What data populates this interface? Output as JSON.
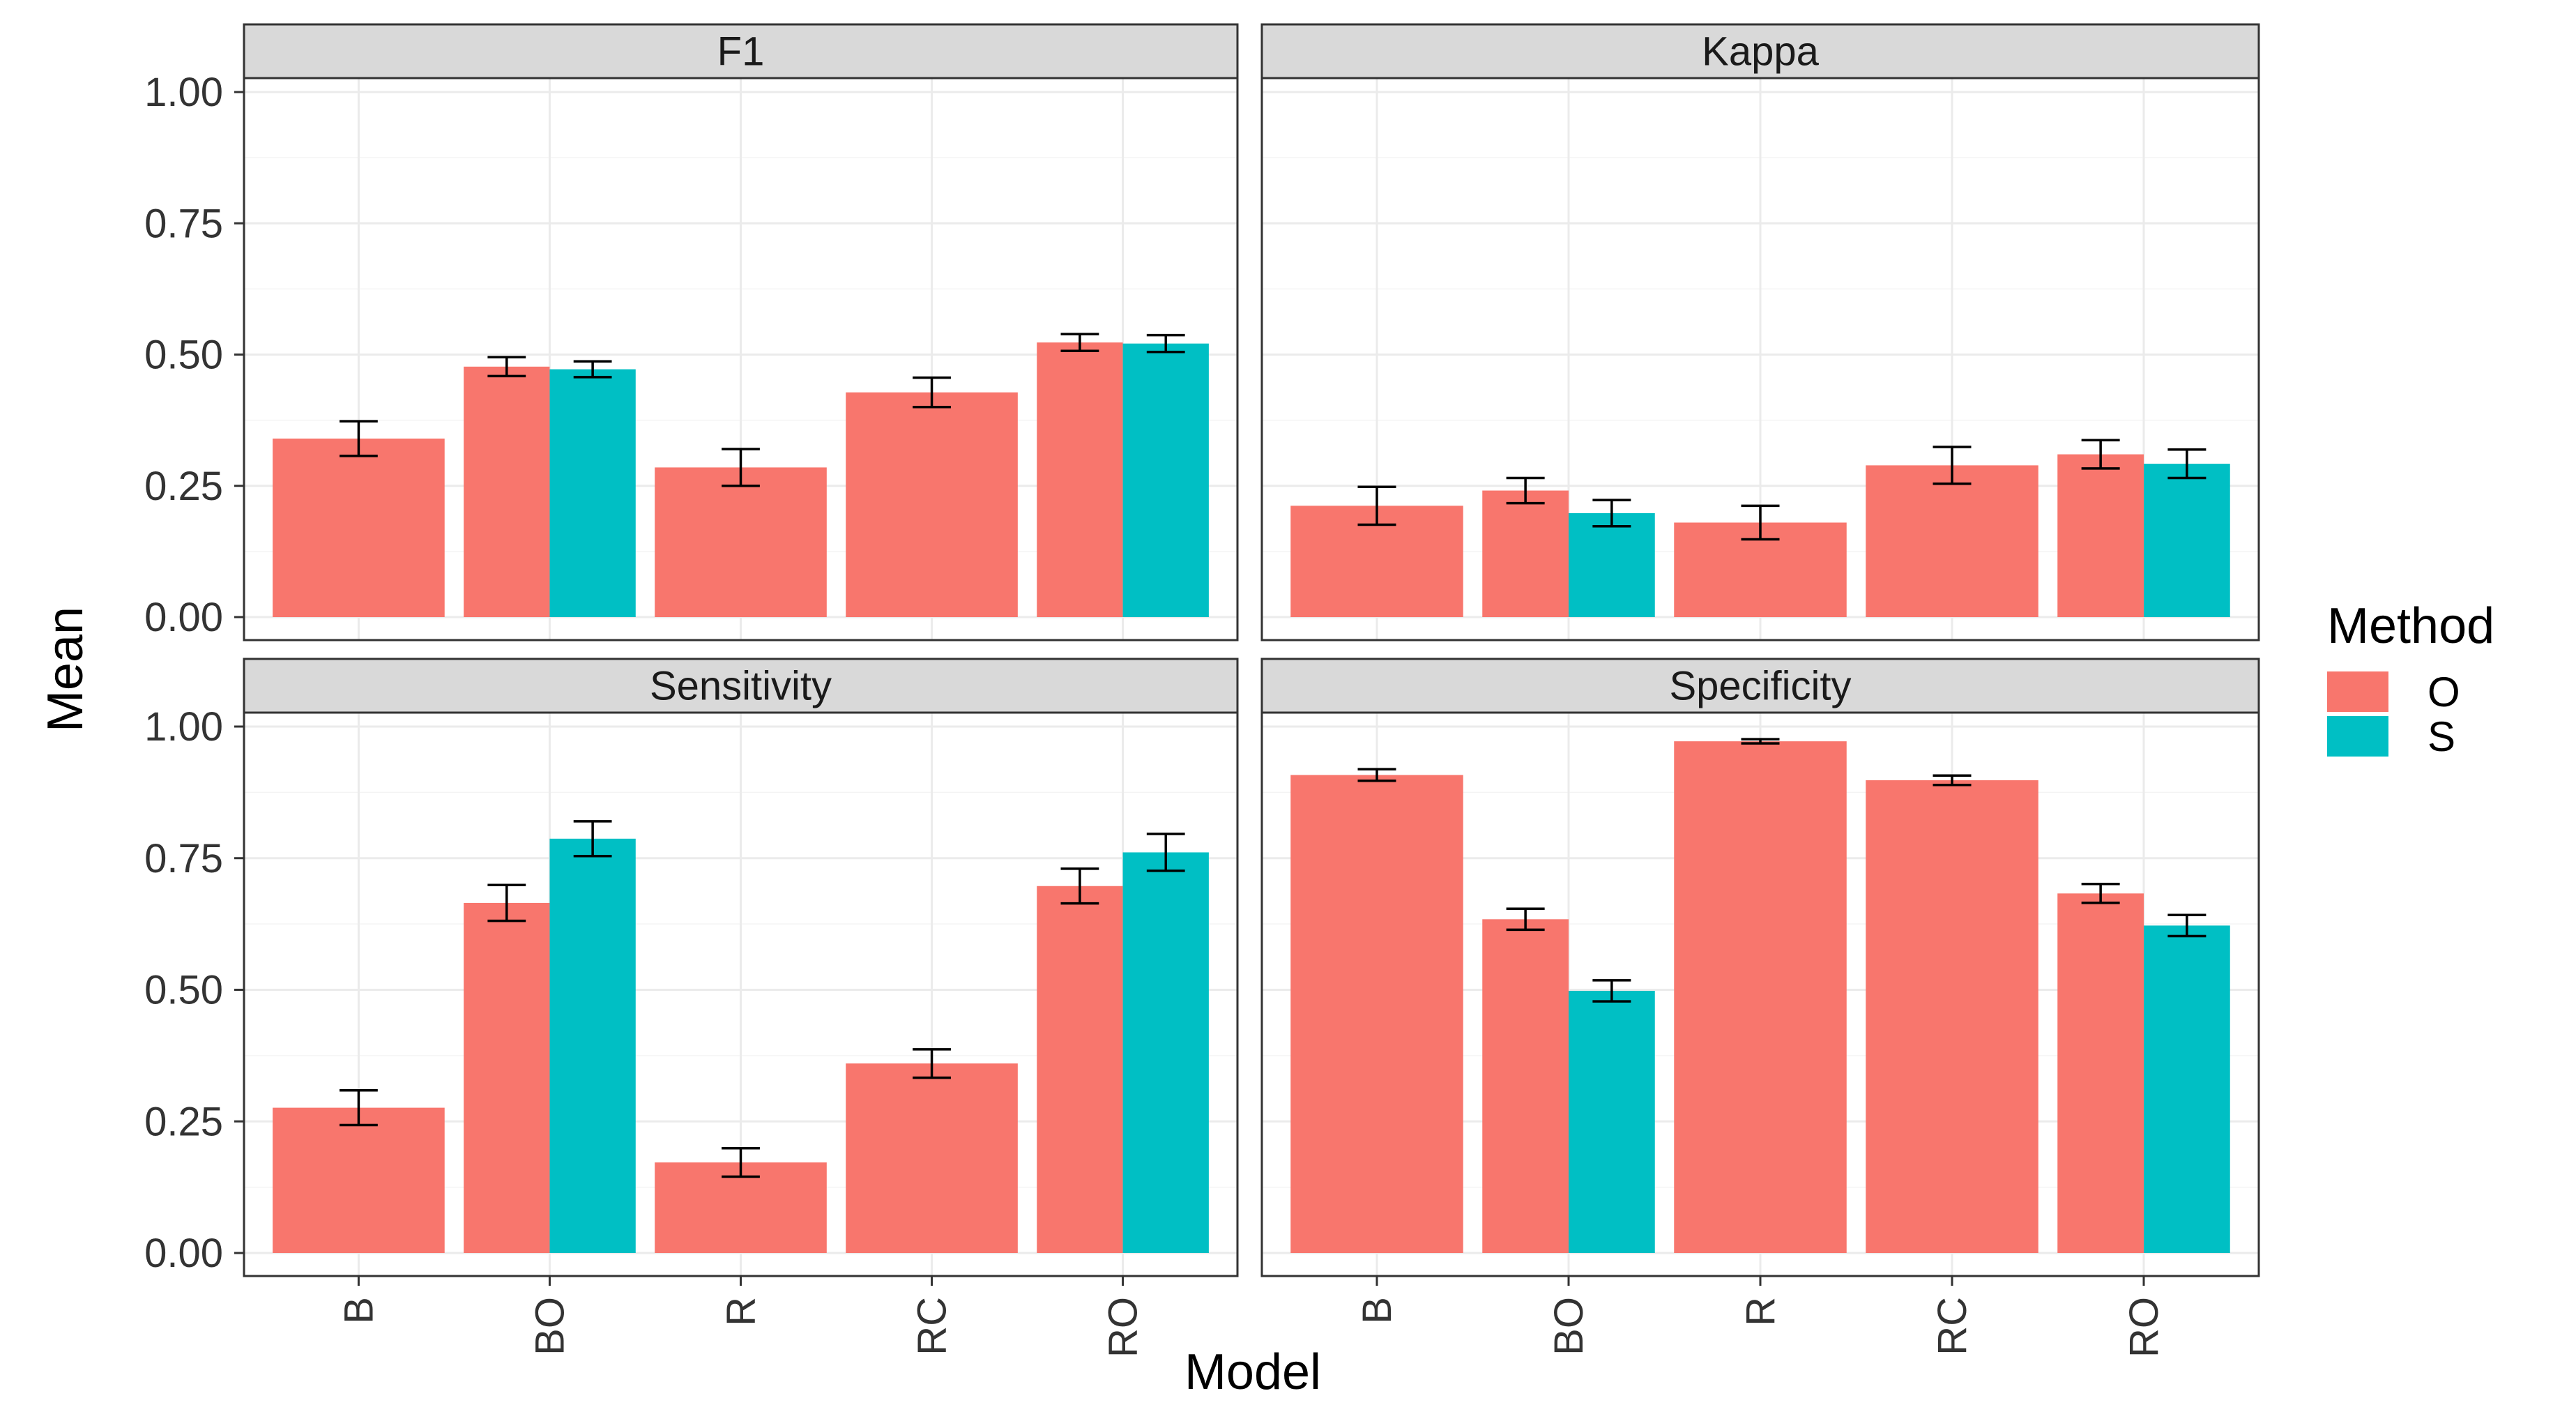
{
  "chart_data": {
    "type": "bar",
    "facets": [
      "F1",
      "Kappa",
      "Sensitivity",
      "Specificity"
    ],
    "categories": [
      "B",
      "BO",
      "R",
      "RC",
      "RO"
    ],
    "xlabel": "Model",
    "ylabel": "Mean",
    "ylim": [
      0,
      1
    ],
    "yticks": [
      "0.00",
      "0.25",
      "0.50",
      "0.75",
      "1.00"
    ],
    "legend": {
      "title": "Method",
      "position": "right",
      "entries": [
        {
          "name": "O",
          "color": "#F8766D"
        },
        {
          "name": "S",
          "color": "#00BFC4"
        }
      ]
    },
    "panels": [
      {
        "facet": "F1",
        "series": [
          {
            "name": "O",
            "values": [
              0.34,
              0.477,
              0.285,
              0.428,
              0.523
            ],
            "errors": [
              0.033,
              0.018,
              0.035,
              0.028,
              0.016
            ]
          },
          {
            "name": "S",
            "values": [
              null,
              0.472,
              null,
              null,
              0.521
            ],
            "errors": [
              null,
              0.015,
              null,
              null,
              0.016
            ]
          }
        ]
      },
      {
        "facet": "Kappa",
        "series": [
          {
            "name": "O",
            "values": [
              0.212,
              0.241,
              0.18,
              0.289,
              0.31
            ],
            "errors": [
              0.036,
              0.024,
              0.032,
              0.035,
              0.027
            ]
          },
          {
            "name": "S",
            "values": [
              null,
              0.198,
              null,
              null,
              0.292
            ],
            "errors": [
              null,
              0.025,
              null,
              null,
              0.027
            ]
          }
        ]
      },
      {
        "facet": "Sensitivity",
        "series": [
          {
            "name": "O",
            "values": [
              0.276,
              0.665,
              0.172,
              0.36,
              0.697
            ],
            "errors": [
              0.033,
              0.034,
              0.027,
              0.027,
              0.033
            ]
          },
          {
            "name": "S",
            "values": [
              null,
              0.787,
              null,
              null,
              0.761
            ],
            "errors": [
              null,
              0.033,
              null,
              null,
              0.035
            ]
          }
        ]
      },
      {
        "facet": "Specificity",
        "series": [
          {
            "name": "O",
            "values": [
              0.908,
              0.634,
              0.972,
              0.898,
              0.683
            ],
            "errors": [
              0.011,
              0.02,
              0.004,
              0.009,
              0.018
            ]
          },
          {
            "name": "S",
            "values": [
              null,
              0.498,
              null,
              null,
              0.622
            ],
            "errors": [
              null,
              0.02,
              null,
              null,
              0.02
            ]
          }
        ]
      }
    ]
  }
}
